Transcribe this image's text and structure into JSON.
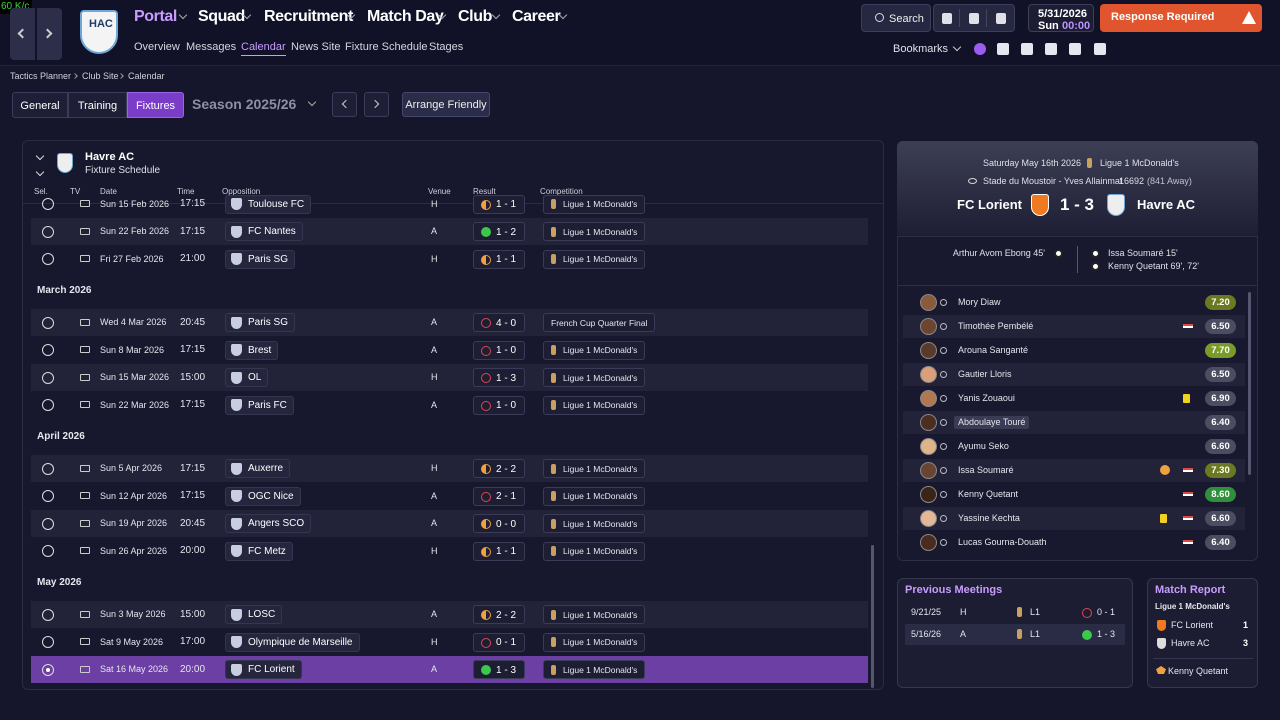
{
  "overlay": "60 K/c",
  "nav": {
    "logo": "HAC",
    "menu": [
      "Portal",
      "Squad",
      "Recruitment",
      "Match Day",
      "Club",
      "Career"
    ],
    "submenu": [
      "Overview",
      "Messages",
      "Calendar",
      "News Site",
      "Fixture Schedule",
      "Stages"
    ],
    "search": "Search",
    "date": "5/31/2026",
    "day": "Sun",
    "time": "00:00",
    "alert": "Response Required",
    "bookmarks": "Bookmarks"
  },
  "breadcrumb": [
    "Tactics Planner",
    "Club Site",
    "Calendar"
  ],
  "tabs": [
    "General",
    "Training",
    "Fixtures"
  ],
  "season": "Season 2025/26",
  "arrange": "Arrange Friendly",
  "fixtures": {
    "team": "Havre AC",
    "subtitle": "Fixture Schedule",
    "columns": [
      "Sel.",
      "TV",
      "Date",
      "Time",
      "Opposition",
      "Venue",
      "Result",
      "Competition"
    ],
    "groups": [
      {
        "rows": [
          {
            "date": "Sun 15 Feb 2026",
            "time": "17:15",
            "opponent": "Toulouse FC",
            "venue": "H",
            "result": "1 - 1",
            "competition": "Ligue 1 McDonald's"
          },
          {
            "date": "Sun 22 Feb 2026",
            "time": "17:15",
            "opponent": "FC Nantes",
            "venue": "A",
            "result": "1 - 2",
            "competition": "Ligue 1 McDonald's"
          },
          {
            "date": "Fri 27 Feb 2026",
            "time": "21:00",
            "opponent": "Paris SG",
            "venue": "H",
            "result": "1 - 1",
            "competition": "Ligue 1 McDonald's"
          }
        ]
      },
      {
        "month": "March 2026",
        "rows": [
          {
            "date": "Wed 4 Mar 2026",
            "time": "20:45",
            "opponent": "Paris SG",
            "venue": "A",
            "result": "4 - 0",
            "competition": "French Cup Quarter Final"
          },
          {
            "date": "Sun 8 Mar 2026",
            "time": "17:15",
            "opponent": "Brest",
            "venue": "A",
            "result": "1 - 0",
            "competition": "Ligue 1 McDonald's"
          },
          {
            "date": "Sun 15 Mar 2026",
            "time": "15:00",
            "opponent": "OL",
            "venue": "H",
            "result": "1 - 3",
            "competition": "Ligue 1 McDonald's"
          },
          {
            "date": "Sun 22 Mar 2026",
            "time": "17:15",
            "opponent": "Paris FC",
            "venue": "A",
            "result": "1 - 0",
            "competition": "Ligue 1 McDonald's"
          }
        ]
      },
      {
        "month": "April 2026",
        "rows": [
          {
            "date": "Sun 5 Apr 2026",
            "time": "17:15",
            "opponent": "Auxerre",
            "venue": "H",
            "result": "2 - 2",
            "competition": "Ligue 1 McDonald's"
          },
          {
            "date": "Sun 12 Apr 2026",
            "time": "17:15",
            "opponent": "OGC Nice",
            "venue": "A",
            "result": "2 - 1",
            "competition": "Ligue 1 McDonald's"
          },
          {
            "date": "Sun 19 Apr 2026",
            "time": "20:45",
            "opponent": "Angers SCO",
            "venue": "A",
            "result": "0 - 0",
            "competition": "Ligue 1 McDonald's"
          },
          {
            "date": "Sun 26 Apr 2026",
            "time": "20:00",
            "opponent": "FC Metz",
            "venue": "H",
            "result": "1 - 1",
            "competition": "Ligue 1 McDonald's"
          }
        ]
      },
      {
        "month": "May 2026",
        "rows": [
          {
            "date": "Sun 3 May 2026",
            "time": "15:00",
            "opponent": "LOSC",
            "venue": "A",
            "result": "2 - 2",
            "competition": "Ligue 1 McDonald's"
          },
          {
            "date": "Sat 9 May 2026",
            "time": "17:00",
            "opponent": "Olympique de Marseille",
            "venue": "H",
            "result": "0 - 1",
            "competition": "Ligue 1 McDonald's"
          },
          {
            "date": "Sat 16 May 2026",
            "time": "20:00",
            "opponent": "FC Lorient",
            "venue": "A",
            "result": "1 - 3",
            "competition": "Ligue 1 McDonald's"
          }
        ]
      }
    ]
  },
  "match": {
    "date": "Saturday May 16th 2026",
    "competition": "Ligue 1 McDonald's",
    "stadium": "Stade du Moustoir - Yves Allainmat",
    "attendance": "16692",
    "away_fans": "(841 Away)",
    "home_team": "FC Lorient",
    "score": "1 - 3",
    "away_team": "Havre AC",
    "home_scorers": [
      "Arthur Avom Ebong 45'"
    ],
    "away_scorers": [
      "Issa Soumaré 15'",
      "Kenny Quetant 69', 72'"
    ]
  },
  "players": [
    {
      "name": "Mory Diaw",
      "rating": "7.20"
    },
    {
      "name": "Timothée Pembélé",
      "rating": "6.50"
    },
    {
      "name": "Arouna Sanganté",
      "rating": "7.70"
    },
    {
      "name": "Gautier Lloris",
      "rating": "6.50"
    },
    {
      "name": "Yanis Zouaoui",
      "rating": "6.90"
    },
    {
      "name": "Abdoulaye Touré",
      "rating": "6.40"
    },
    {
      "name": "Ayumu Seko",
      "rating": "6.60"
    },
    {
      "name": "Issa Soumaré",
      "rating": "7.30"
    },
    {
      "name": "Kenny Quetant",
      "rating": "8.60"
    },
    {
      "name": "Yassine Kechta",
      "rating": "6.60"
    },
    {
      "name": "Lucas Gourna-Douath",
      "rating": "6.40"
    }
  ],
  "previous": {
    "title": "Previous Meetings",
    "rows": [
      {
        "date": "9/21/25",
        "venue": "H",
        "competition": "L1",
        "result": "0 - 1"
      },
      {
        "date": "5/16/26",
        "venue": "A",
        "competition": "L1",
        "result": "1 - 3"
      }
    ]
  },
  "report": {
    "title": "Match Report",
    "competition": "Ligue 1 McDonald's",
    "teams": [
      {
        "name": "FC Lorient",
        "goals": "1"
      },
      {
        "name": "Havre AC",
        "goals": "3"
      }
    ],
    "motm": "Kenny Quetant"
  }
}
